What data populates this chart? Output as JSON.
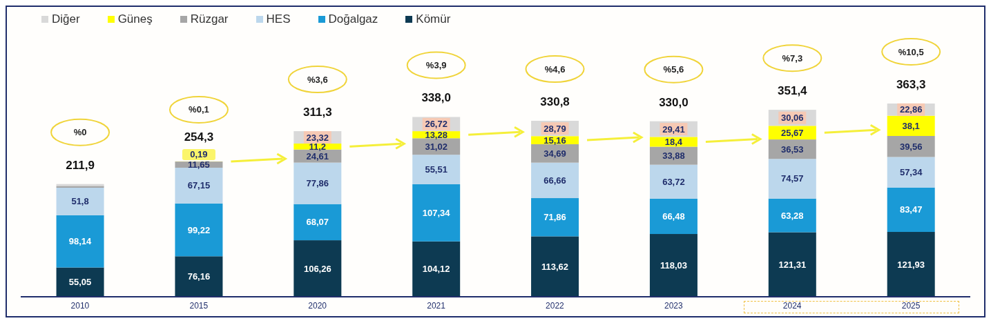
{
  "chart_data": {
    "type": "bar",
    "stacked": true,
    "legend": "top left",
    "categories": [
      "2010",
      "2015",
      "2020",
      "2021",
      "2022",
      "2023",
      "2024",
      "2025"
    ],
    "series": [
      {
        "name": "Kömür",
        "color": "#0d3a52",
        "values": [
          55.05,
          76.16,
          106.26,
          104.12,
          113.62,
          118.03,
          121.31,
          121.93
        ],
        "value_labels": [
          "55,05",
          "76,16",
          "106,26",
          "104,12",
          "113,62",
          "118,03",
          "121,31",
          "121,93"
        ]
      },
      {
        "name": "Doğalgaz",
        "color": "#1a9ad6",
        "values": [
          98.14,
          99.22,
          68.07,
          107.34,
          71.86,
          66.48,
          63.28,
          83.47
        ],
        "value_labels": [
          "98,14",
          "99,22",
          "68,07",
          "107,34",
          "71,86",
          "66,48",
          "63,28",
          "83,47"
        ]
      },
      {
        "name": "HES",
        "color": "#bcd7ec",
        "values": [
          51.8,
          67.15,
          77.86,
          55.51,
          66.66,
          63.72,
          74.57,
          57.34
        ],
        "value_labels": [
          "51,8",
          "67,15",
          "77,86",
          "55,51",
          "66,66",
          "63,72",
          "74,57",
          "57,34"
        ]
      },
      {
        "name": "Rüzgar",
        "color": "#a6a6a6",
        "values": [
          3.3,
          11.65,
          24.61,
          31.02,
          34.69,
          33.88,
          36.53,
          39.56
        ],
        "value_labels": [
          null,
          "11,65",
          "24,61",
          "31,02",
          "34,69",
          "33,88",
          "36,53",
          "39,56"
        ]
      },
      {
        "name": "Güneş",
        "color": "#ffff00",
        "values": [
          null,
          0.19,
          11.2,
          13.28,
          15.16,
          18.4,
          25.67,
          38.1
        ],
        "value_labels": [
          null,
          "0,19",
          "11,2",
          "13,28",
          "15,16",
          "18,4",
          "25,67",
          "38,1"
        ]
      },
      {
        "name": "Diğer",
        "color": "#d9d9d9",
        "values": [
          3.6,
          null,
          23.32,
          26.72,
          28.79,
          29.41,
          30.06,
          22.86
        ],
        "value_labels": [
          null,
          null,
          "23,32",
          "26,72",
          "28,79",
          "29,41",
          "30,06",
          "22,86"
        ]
      }
    ],
    "totals": [
      "211,9",
      "254,3",
      "311,3",
      "338,0",
      "330,8",
      "330,0",
      "351,4",
      "363,3"
    ],
    "annotations": [
      "%0",
      "%0,1",
      "%3,6",
      "%3,9",
      "%4,6",
      "%5,6",
      "%7,3",
      "%10,5"
    ]
  }
}
